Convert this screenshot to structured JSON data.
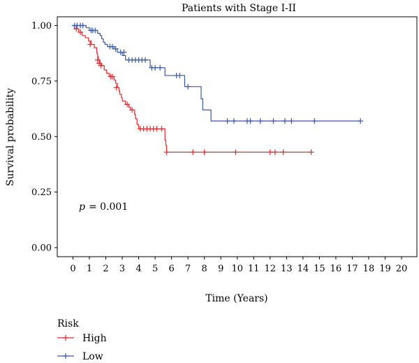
{
  "chart_data": {
    "type": "line",
    "subtype": "kaplan-meier",
    "title": "Patients with Stage I-II",
    "xlabel": "Time (Years)",
    "ylabel": "Survival probability",
    "xlim": [
      0,
      20
    ],
    "ylim": [
      0,
      1
    ],
    "xticks": [
      "0",
      "1",
      "2",
      "3",
      "4",
      "5",
      "6",
      "7",
      "8",
      "9",
      "10",
      "11",
      "12",
      "13",
      "14",
      "15",
      "16",
      "17",
      "18",
      "19",
      "20"
    ],
    "yticks": [
      "0.00",
      "0.25",
      "0.50",
      "0.75",
      "1.00"
    ],
    "grid": false,
    "annotation": {
      "p_label": "p",
      "p_value": "= 0.001"
    },
    "legend": {
      "title": "Risk",
      "placement": "bottom-left"
    },
    "series": [
      {
        "name": "High",
        "color": "#e8262b",
        "steps": [
          [
            0,
            1.0
          ],
          [
            0.1,
            0.985
          ],
          [
            0.35,
            0.97
          ],
          [
            0.55,
            0.955
          ],
          [
            0.75,
            0.945
          ],
          [
            0.95,
            0.93
          ],
          [
            1.1,
            0.915
          ],
          [
            1.3,
            0.9
          ],
          [
            1.45,
            0.875
          ],
          [
            1.5,
            0.86
          ],
          [
            1.55,
            0.845
          ],
          [
            1.65,
            0.83
          ],
          [
            1.75,
            0.82
          ],
          [
            1.9,
            0.8
          ],
          [
            2.05,
            0.785
          ],
          [
            2.2,
            0.77
          ],
          [
            2.5,
            0.755
          ],
          [
            2.6,
            0.74
          ],
          [
            2.7,
            0.72
          ],
          [
            2.8,
            0.705
          ],
          [
            2.85,
            0.69
          ],
          [
            2.95,
            0.675
          ],
          [
            3.0,
            0.66
          ],
          [
            3.2,
            0.645
          ],
          [
            3.4,
            0.632
          ],
          [
            3.5,
            0.62
          ],
          [
            3.75,
            0.6
          ],
          [
            3.8,
            0.58
          ],
          [
            3.9,
            0.555
          ],
          [
            4.0,
            0.535
          ],
          [
            5.6,
            0.485
          ],
          [
            5.65,
            0.46
          ],
          [
            5.7,
            0.43
          ],
          [
            14.5,
            0.43
          ]
        ],
        "censors": [
          [
            0.2,
            0.985
          ],
          [
            0.45,
            0.97
          ],
          [
            1.05,
            0.915
          ],
          [
            1.5,
            0.845
          ],
          [
            1.6,
            0.83
          ],
          [
            1.7,
            0.82
          ],
          [
            2.3,
            0.77
          ],
          [
            2.4,
            0.77
          ],
          [
            2.65,
            0.72
          ],
          [
            3.3,
            0.645
          ],
          [
            3.6,
            0.62
          ],
          [
            4.1,
            0.535
          ],
          [
            4.3,
            0.535
          ],
          [
            4.5,
            0.535
          ],
          [
            4.7,
            0.535
          ],
          [
            4.9,
            0.535
          ],
          [
            5.1,
            0.535
          ],
          [
            5.4,
            0.535
          ],
          [
            5.7,
            0.43
          ],
          [
            7.3,
            0.43
          ],
          [
            8.0,
            0.43
          ],
          [
            9.9,
            0.43
          ],
          [
            12.0,
            0.43
          ],
          [
            12.3,
            0.43
          ],
          [
            12.8,
            0.43
          ],
          [
            14.5,
            0.43
          ]
        ]
      },
      {
        "name": "Low",
        "color": "#3a58a8",
        "steps": [
          [
            0,
            1.0
          ],
          [
            0.8,
            0.99
          ],
          [
            1.0,
            0.978
          ],
          [
            1.5,
            0.965
          ],
          [
            1.65,
            0.955
          ],
          [
            1.75,
            0.94
          ],
          [
            1.85,
            0.925
          ],
          [
            1.95,
            0.915
          ],
          [
            2.1,
            0.905
          ],
          [
            2.5,
            0.895
          ],
          [
            2.7,
            0.88
          ],
          [
            3.0,
            0.865
          ],
          [
            3.2,
            0.845
          ],
          [
            4.7,
            0.81
          ],
          [
            5.6,
            0.775
          ],
          [
            6.8,
            0.725
          ],
          [
            7.8,
            0.67
          ],
          [
            7.9,
            0.62
          ],
          [
            8.4,
            0.57
          ],
          [
            17.5,
            0.57
          ]
        ],
        "censors": [
          [
            0.1,
            1.0
          ],
          [
            0.25,
            1.0
          ],
          [
            0.45,
            1.0
          ],
          [
            0.6,
            1.0
          ],
          [
            1.1,
            0.978
          ],
          [
            1.2,
            0.978
          ],
          [
            1.35,
            0.978
          ],
          [
            2.25,
            0.905
          ],
          [
            2.4,
            0.905
          ],
          [
            2.6,
            0.895
          ],
          [
            2.9,
            0.88
          ],
          [
            3.1,
            0.88
          ],
          [
            3.4,
            0.845
          ],
          [
            3.6,
            0.845
          ],
          [
            3.8,
            0.845
          ],
          [
            4.0,
            0.845
          ],
          [
            4.2,
            0.845
          ],
          [
            4.4,
            0.845
          ],
          [
            4.8,
            0.81
          ],
          [
            5.0,
            0.81
          ],
          [
            5.3,
            0.81
          ],
          [
            6.3,
            0.775
          ],
          [
            6.5,
            0.775
          ],
          [
            7.0,
            0.725
          ],
          [
            9.4,
            0.57
          ],
          [
            9.8,
            0.57
          ],
          [
            10.6,
            0.57
          ],
          [
            10.8,
            0.57
          ],
          [
            11.4,
            0.57
          ],
          [
            12.2,
            0.57
          ],
          [
            12.9,
            0.57
          ],
          [
            13.3,
            0.57
          ],
          [
            14.7,
            0.57
          ],
          [
            17.5,
            0.57
          ]
        ]
      }
    ]
  }
}
